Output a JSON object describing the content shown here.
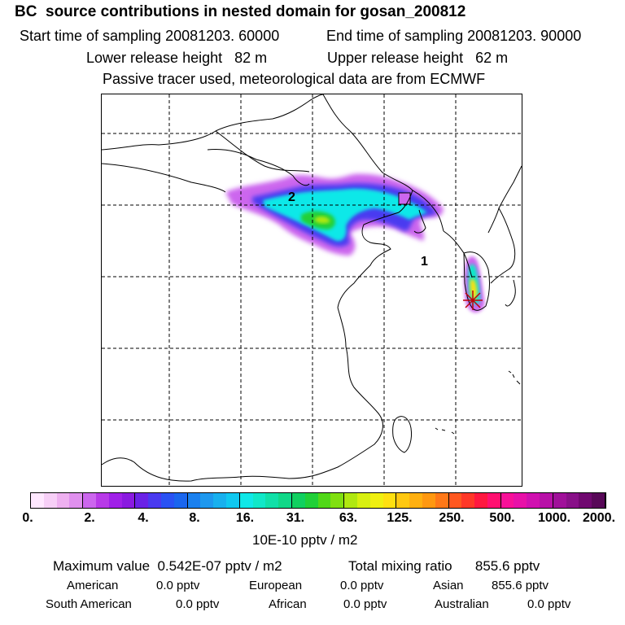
{
  "header": {
    "title": "BC  source contributions in nested domain for gosan_200812",
    "start_time": "Start time of sampling 20081203. 60000",
    "end_time": "End time of sampling 20081203. 90000",
    "lower_release": "Lower release height   82 m",
    "upper_release": "Upper release height   62 m",
    "tracer_note": "Passive tracer used, meteorological data are from ECMWF"
  },
  "map": {
    "point_labels": [
      "2",
      "1"
    ],
    "receptor": "gosan"
  },
  "legend": {
    "tick_labels": [
      "0.",
      "2.",
      "4.",
      "8.",
      "16.",
      "31.",
      "63.",
      "125.",
      "250.",
      "500.",
      "1000.",
      "2000."
    ],
    "units": "10E-10 pptv / m2",
    "colors": [
      "#ffe8ff",
      "#f7cff7",
      "#eeb0f0",
      "#e090ee",
      "#cc66ee",
      "#b83ae8",
      "#a020e8",
      "#8a1ae0",
      "#6a22e6",
      "#4a3af0",
      "#2a52f4",
      "#1a66ee",
      "#1a80ee",
      "#1e98ee",
      "#18b0ee",
      "#10c8f0",
      "#10e8e8",
      "#10e8c8",
      "#10e0a8",
      "#10d888",
      "#10d060",
      "#20d038",
      "#50d818",
      "#80e010",
      "#b0e810",
      "#d8f010",
      "#f0f010",
      "#ffe010",
      "#ffc810",
      "#ffb010",
      "#ff9810",
      "#ff7818",
      "#ff5820",
      "#ff3828",
      "#ff1840",
      "#ff1070",
      "#f81098",
      "#e810a8",
      "#d010b0",
      "#b810a8",
      "#a0109a",
      "#881088",
      "#700870",
      "#580858"
    ]
  },
  "stats": {
    "max_value": "Maximum value  0.542E-07 pptv / m2",
    "total_mixing": "Total mixing ratio      855.6 pptv",
    "regions": [
      {
        "name": "American",
        "value": "0.0 pptv"
      },
      {
        "name": "European",
        "value": "0.0 pptv"
      },
      {
        "name": "Asian",
        "value": "855.6 pptv"
      },
      {
        "name": "South American",
        "value": "0.0 pptv"
      },
      {
        "name": "African",
        "value": "0.0 pptv"
      },
      {
        "name": "Australian",
        "value": "0.0 pptv"
      }
    ]
  }
}
